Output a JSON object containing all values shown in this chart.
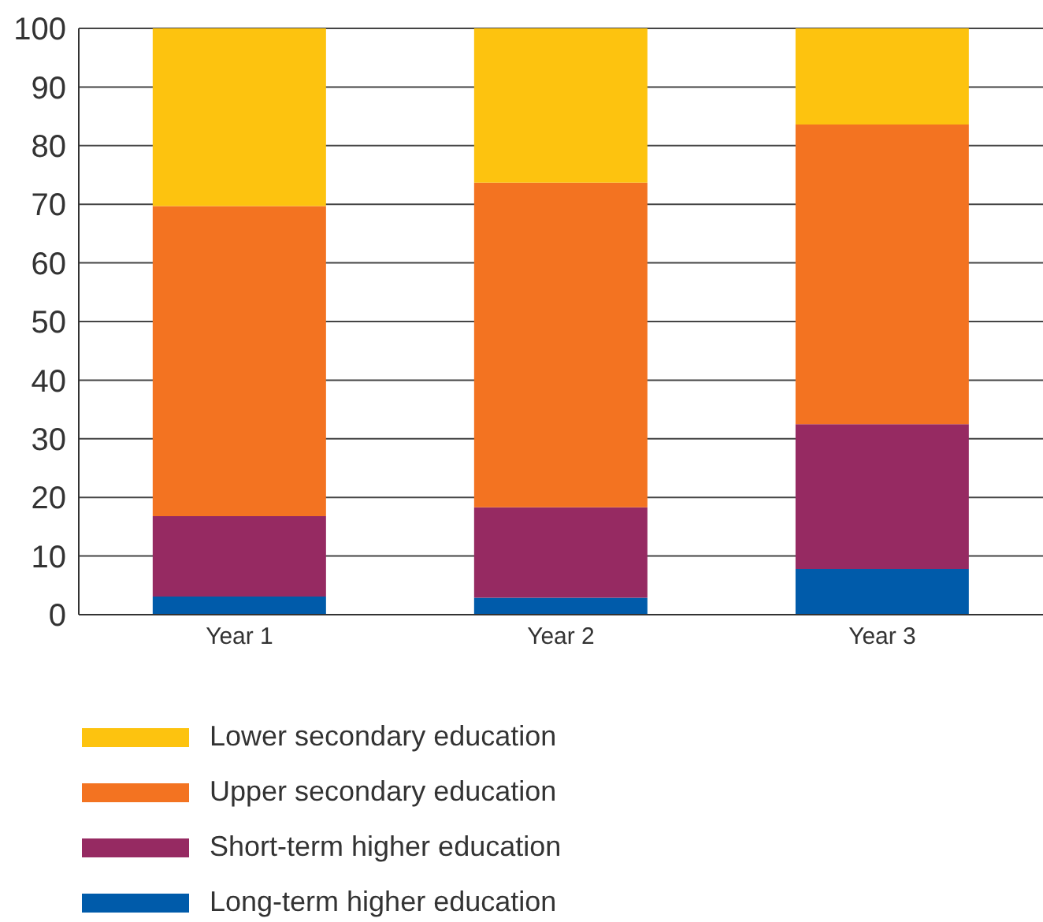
{
  "chart_data": {
    "type": "bar",
    "stacked": true,
    "categories": [
      "Year 1",
      "Year 2",
      "Year 3"
    ],
    "series": [
      {
        "name": "Long-term higher education",
        "color": "#005baa",
        "values": [
          3.1,
          2.9,
          7.8
        ]
      },
      {
        "name": "Short-term higher education",
        "color": "#962a62",
        "values": [
          13.7,
          15.4,
          24.7
        ]
      },
      {
        "name": "Upper secondary education",
        "color": "#f37321",
        "values": [
          52.9,
          55.4,
          51.1
        ]
      },
      {
        "name": "Lower secondary education",
        "color": "#fdc30f",
        "values": [
          30.3,
          26.3,
          16.4
        ]
      }
    ],
    "ylim": [
      0,
      100
    ],
    "yticks": [
      0,
      10,
      20,
      30,
      40,
      50,
      60,
      70,
      80,
      90,
      100
    ],
    "grid": "y",
    "legend": "bottom"
  }
}
